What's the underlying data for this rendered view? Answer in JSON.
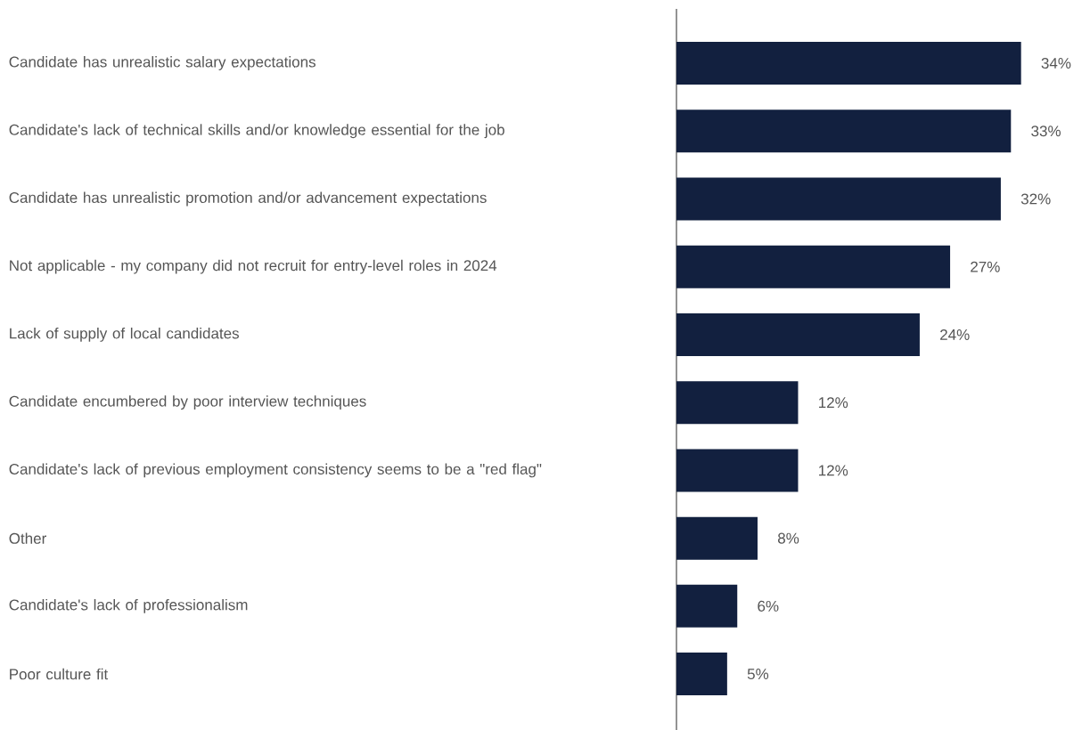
{
  "chart_data": {
    "type": "bar",
    "orientation": "horizontal",
    "categories": [
      "Candidate has unrealistic salary expectations",
      "Candidate's lack of technical skills and/or knowledge essential for the job",
      "Candidate has unrealistic promotion and/or advancement expectations",
      "Not applicable - my company did not recruit for entry-level roles in 2024",
      "Lack of supply of local candidates",
      "Candidate encumbered by poor interview techniques",
      "Candidate's lack of previous employment consistency seems to be a \"red flag\"",
      "Other",
      "Candidate's lack of professionalism",
      "Poor culture fit"
    ],
    "values": [
      34,
      33,
      32,
      27,
      24,
      12,
      12,
      8,
      6,
      5
    ],
    "value_labels": [
      "34%",
      "33%",
      "32%",
      "27%",
      "24%",
      "12%",
      "12%",
      "8%",
      "6%",
      "5%"
    ],
    "color": "#12203f"
  }
}
